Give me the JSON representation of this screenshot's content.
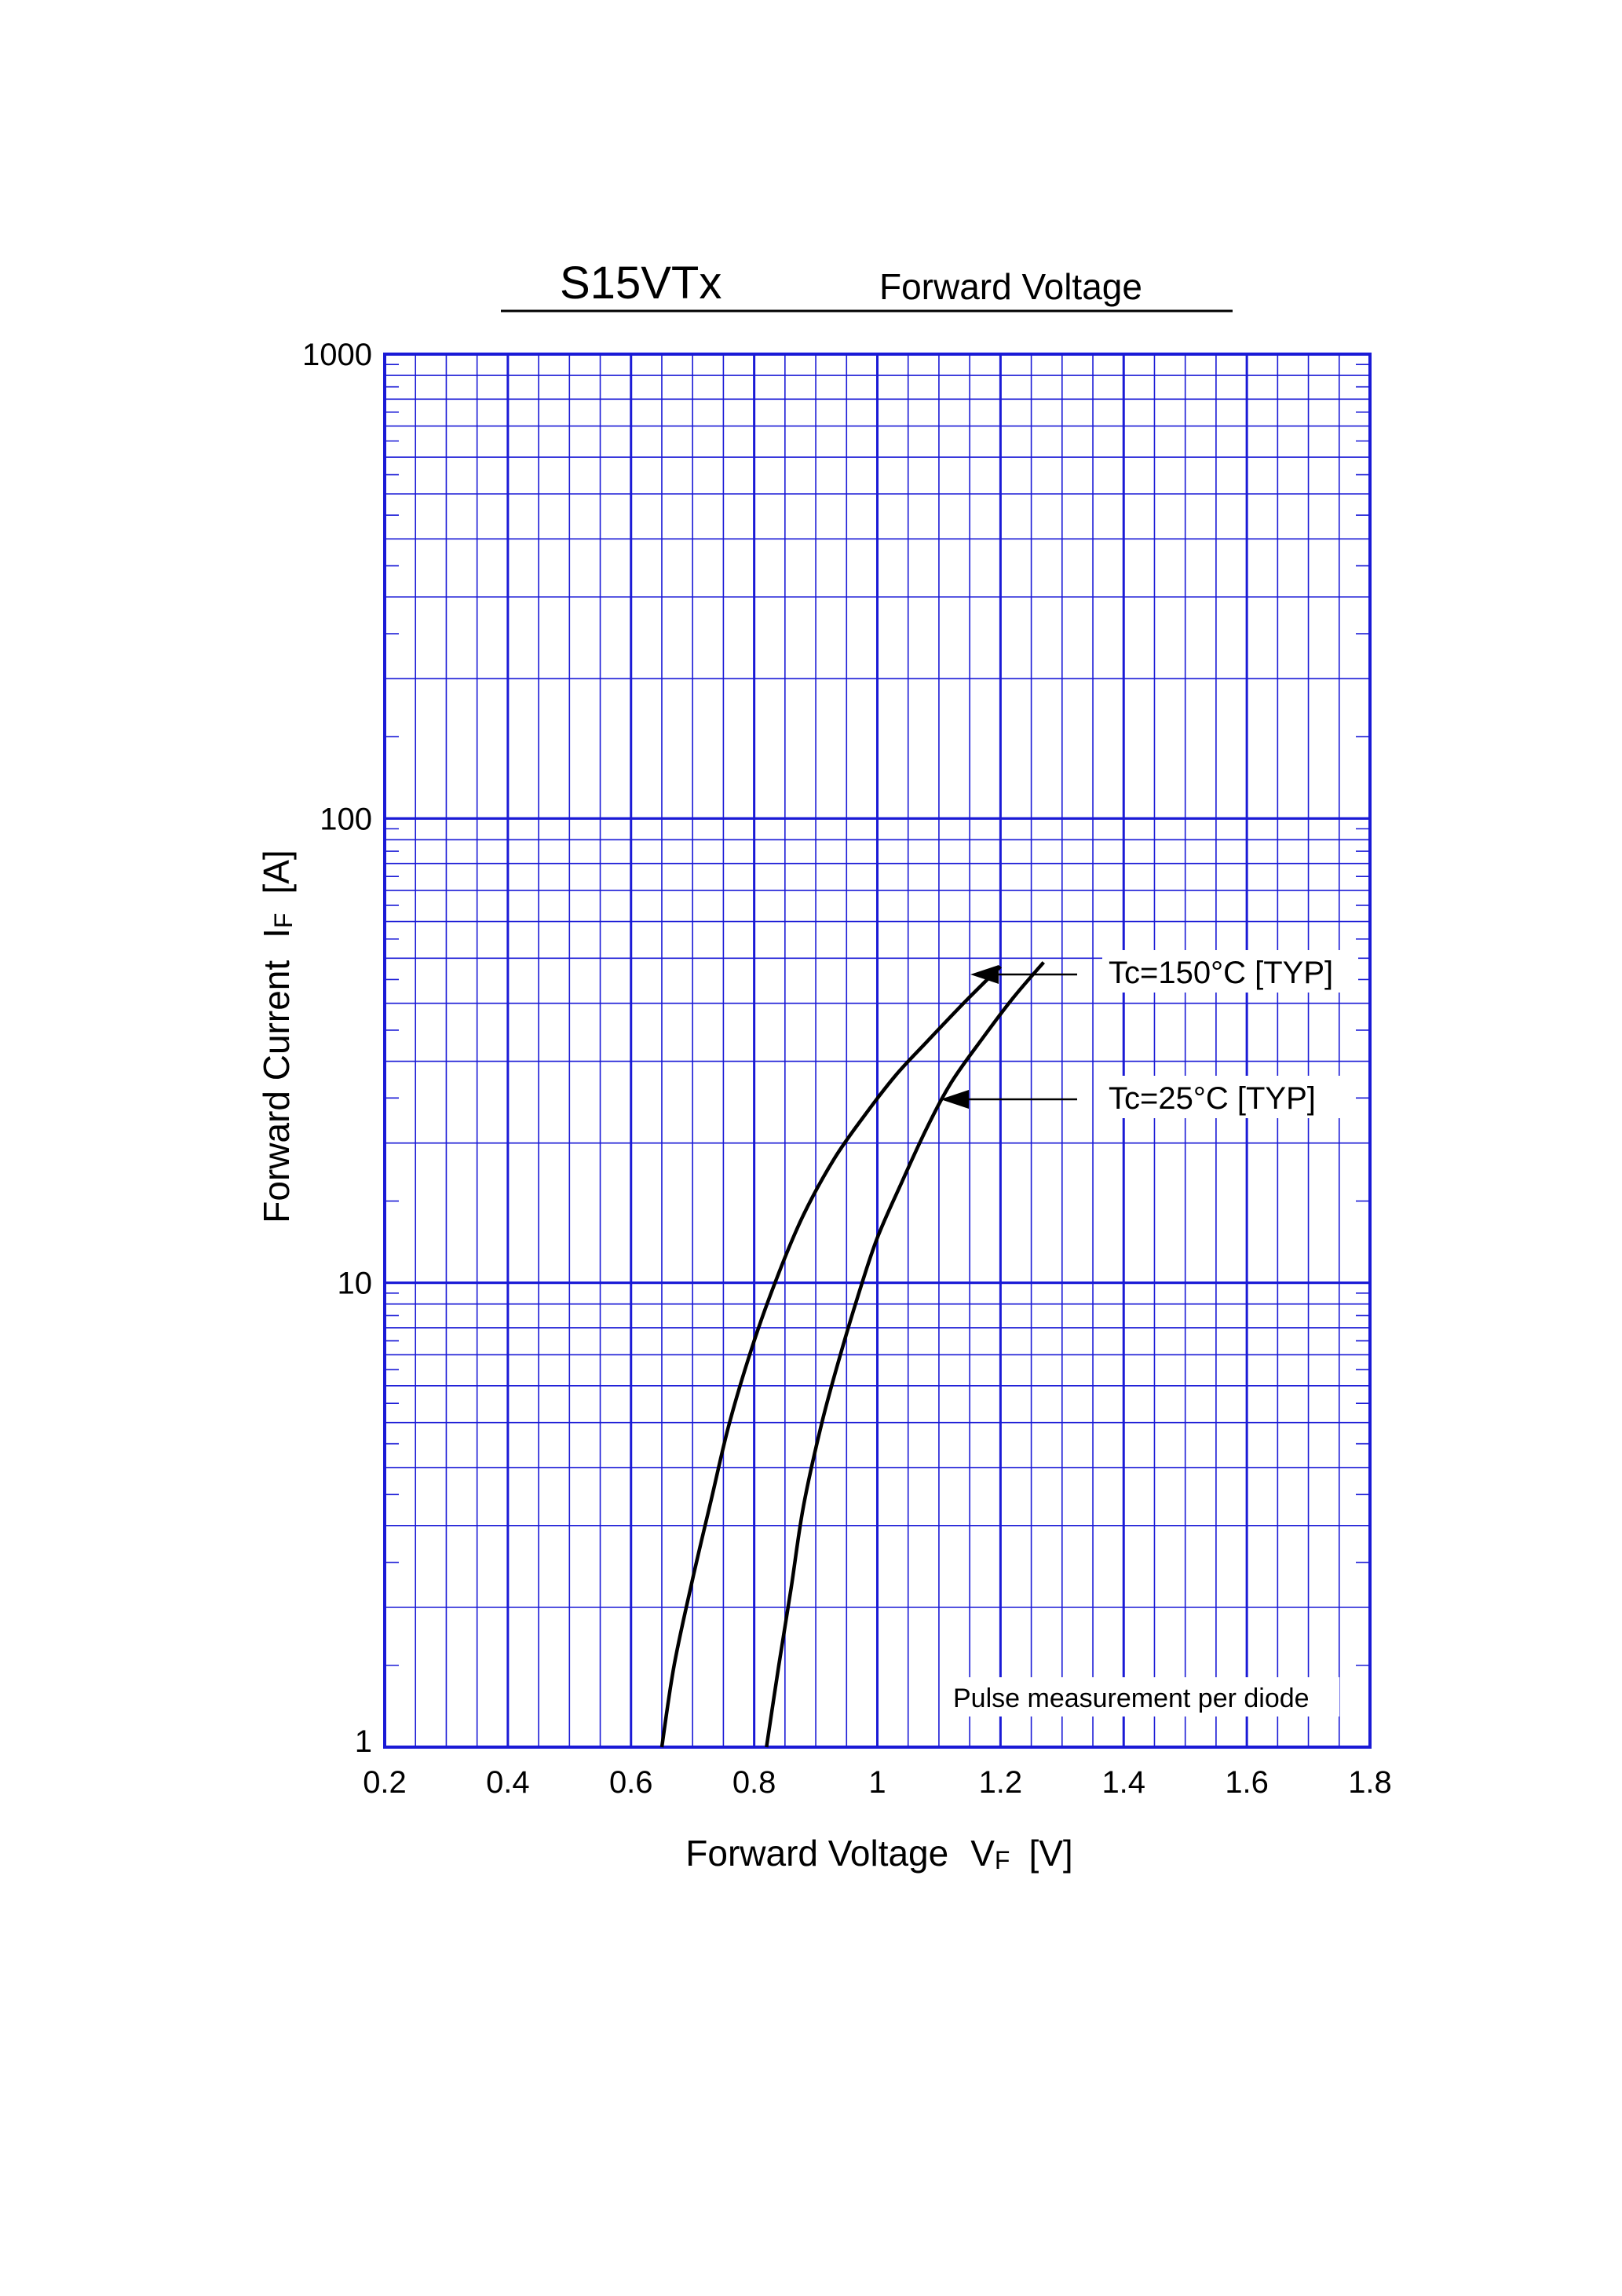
{
  "chart_data": {
    "type": "line",
    "title": "S15VTx",
    "subtitle": "Forward Voltage",
    "xlabel": {
      "main": "Forward Voltage",
      "symbol": "V",
      "subscript": "F",
      "unit": "[V]"
    },
    "ylabel": {
      "main": "Forward Current",
      "symbol": "I",
      "subscript": "F",
      "unit": "[A]"
    },
    "xlim": [
      0.2,
      1.8
    ],
    "ylim": [
      1,
      1000
    ],
    "yscale": "log",
    "grid": true,
    "x_ticks": [
      "0.2",
      "0.4",
      "0.6",
      "0.8",
      "1",
      "1.2",
      "1.4",
      "1.6",
      "1.8"
    ],
    "y_ticks": [
      "1",
      "10",
      "100",
      "1000"
    ],
    "note": "Pulse measurement per diode",
    "series": [
      {
        "name": "Tc=150°C [TYP]",
        "x": [
          0.65,
          0.67,
          0.7,
          0.73,
          0.76,
          0.8,
          0.84,
          0.88,
          0.93,
          0.98,
          1.03,
          1.08,
          1.14,
          1.2
        ],
        "y": [
          1.0,
          1.5,
          2.3,
          3.4,
          5.0,
          7.5,
          10.5,
          14.0,
          18.5,
          23.0,
          28.0,
          33.0,
          40.0,
          48.0
        ]
      },
      {
        "name": "Tc=25°C [TYP]",
        "x": [
          0.82,
          0.84,
          0.86,
          0.88,
          0.91,
          0.94,
          0.97,
          1.0,
          1.04,
          1.08,
          1.12,
          1.17,
          1.22,
          1.27
        ],
        "y": [
          1.0,
          1.5,
          2.2,
          3.3,
          5.0,
          7.0,
          9.5,
          12.5,
          16.5,
          21.5,
          27.0,
          33.5,
          41.0,
          49.0
        ]
      }
    ]
  },
  "colors": {
    "grid": "#1a1ad6",
    "curve": "#000000",
    "text": "#000000"
  }
}
